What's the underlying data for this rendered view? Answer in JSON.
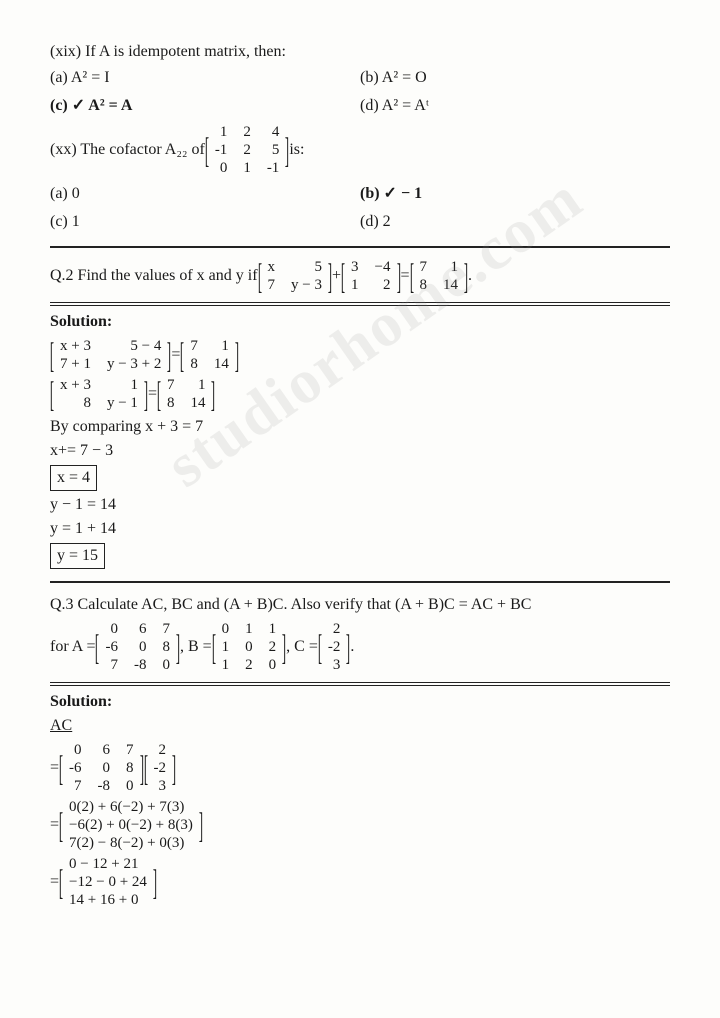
{
  "q19": {
    "prompt": "(xix) If A is idempotent matrix, then:",
    "a": "(a) A² = I",
    "b": "(b) A² = O",
    "c": "(c) ✓ A² = A",
    "d": "(d) A² = Aᵗ"
  },
  "q20": {
    "prefix": "(xx) The cofactor A₂₂ of",
    "matrix": {
      "r1": [
        "1",
        "2",
        "4"
      ],
      "r2": [
        "-1",
        "2",
        "5"
      ],
      "r3": [
        "0",
        "1",
        "-1"
      ]
    },
    "suffix": "is:",
    "a": "(a) 0",
    "b": "(b) ✓ − 1",
    "c": "(c) 1",
    "d": "(d) 2"
  },
  "q2": {
    "prompt_pre": "Q.2 Find the values of x and y if",
    "mA": {
      "r1": [
        "x",
        "5"
      ],
      "r2": [
        "7",
        "y − 3"
      ]
    },
    "plus": "+",
    "mB": {
      "r1": [
        "3",
        "−4"
      ],
      "r2": [
        "1",
        "2"
      ]
    },
    "eq": "=",
    "mC": {
      "r1": [
        "7",
        "1"
      ],
      "r2": [
        "8",
        "14"
      ]
    },
    "dot": "."
  },
  "sol2": {
    "heading": "Solution:",
    "s1L": {
      "r1": [
        "x + 3",
        "5 − 4"
      ],
      "r2": [
        "7 + 1",
        "y − 3 + 2"
      ]
    },
    "s1R": {
      "r1": [
        "7",
        "1"
      ],
      "r2": [
        "8",
        "14"
      ]
    },
    "s2L": {
      "r1": [
        "x + 3",
        "1"
      ],
      "r2": [
        "8",
        "y − 1"
      ]
    },
    "s2R": {
      "r1": [
        "7",
        "1"
      ],
      "r2": [
        "8",
        "14"
      ]
    },
    "l3": "By comparing x + 3 = 7",
    "l4": "x+= 7 − 3",
    "box1": "x = 4",
    "l5": "y − 1 = 14",
    "l6": "y = 1 + 14",
    "box2": "y = 15"
  },
  "q3": {
    "line1": "Q.3 Calculate AC, BC and (A + B)C. Also verify that (A + B)C = AC + BC",
    "for": "for A =",
    "mA": {
      "r1": [
        "0",
        "6",
        "7"
      ],
      "r2": [
        "-6",
        "0",
        "8"
      ],
      "r3": [
        "7",
        "-8",
        "0"
      ]
    },
    "cB": ", B =",
    "mB": {
      "r1": [
        "0",
        "1",
        "1"
      ],
      "r2": [
        "1",
        "0",
        "2"
      ],
      "r3": [
        "1",
        "2",
        "0"
      ]
    },
    "cC": ", C =",
    "mC": {
      "r1": [
        "2"
      ],
      "r2": [
        "-2"
      ],
      "r3": [
        "3"
      ]
    },
    "dot": "."
  },
  "sol3": {
    "heading": "Solution:",
    "ac": "AC",
    "eq": "=",
    "m1a": {
      "r1": [
        "0",
        "6",
        "7"
      ],
      "r2": [
        "-6",
        "0",
        "8"
      ],
      "r3": [
        "7",
        "-8",
        "0"
      ]
    },
    "m1b": {
      "r1": [
        "2"
      ],
      "r2": [
        "-2"
      ],
      "r3": [
        "3"
      ]
    },
    "m2": {
      "r1": [
        "0(2) + 6(−2) + 7(3)"
      ],
      "r2": [
        "−6(2) + 0(−2) + 8(3)"
      ],
      "r3": [
        "7(2) − 8(−2) + 0(3)"
      ]
    },
    "m3": {
      "r1": [
        "0 − 12 + 21"
      ],
      "r2": [
        "−12 − 0 + 24"
      ],
      "r3": [
        "14 + 16 + 0"
      ]
    }
  },
  "watermark": "studiorhome.com"
}
